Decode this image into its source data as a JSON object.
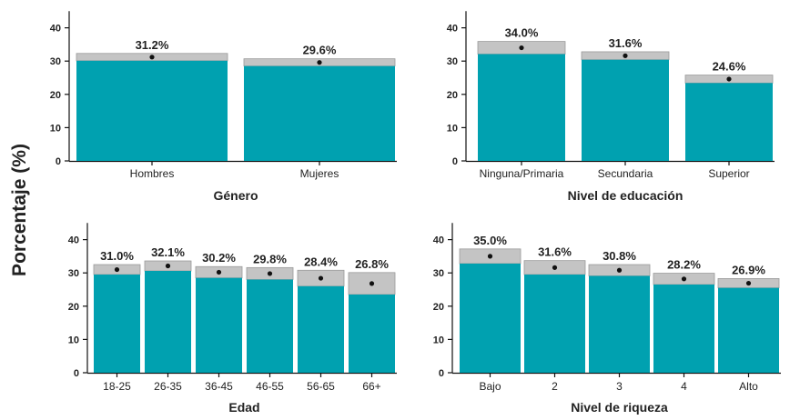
{
  "ylabel": "Porcentaje (%)",
  "colors": {
    "bar": "#00A1B0",
    "cap": "#C4C4C4",
    "capEdge": "#9a9a9a",
    "dot": "#111111",
    "axis": "#111111",
    "text": "#222222"
  },
  "chart_data": [
    {
      "type": "bar",
      "xlabel": "Género",
      "categories": [
        "Hombres",
        "Mujeres"
      ],
      "values": [
        31.2,
        29.6
      ],
      "value_labels": [
        "31.2%",
        "29.6%"
      ],
      "interval_low": [
        30.1,
        28.5
      ],
      "interval_high": [
        32.3,
        30.7
      ],
      "ylim": [
        0,
        45
      ],
      "yticks": [
        "0",
        "10",
        "20",
        "30",
        "40"
      ]
    },
    {
      "type": "bar",
      "xlabel": "Nivel de educación",
      "categories": [
        "Ninguna/Primaria",
        "Secundaria",
        "Superior"
      ],
      "values": [
        34.0,
        31.6,
        24.6
      ],
      "value_labels": [
        "34.0%",
        "31.6%",
        "24.6%"
      ],
      "interval_low": [
        32.1,
        30.4,
        23.4
      ],
      "interval_high": [
        35.9,
        32.8,
        25.8
      ],
      "ylim": [
        0,
        45
      ],
      "yticks": [
        "0",
        "10",
        "20",
        "30",
        "40"
      ]
    },
    {
      "type": "bar",
      "xlabel": "Edad",
      "categories": [
        "18-25",
        "26-35",
        "36-45",
        "46-55",
        "56-65",
        "66+"
      ],
      "values": [
        31.0,
        32.1,
        30.2,
        29.8,
        28.4,
        26.8
      ],
      "value_labels": [
        "31.0%",
        "32.1%",
        "30.2%",
        "29.8%",
        "28.4%",
        "26.8%"
      ],
      "interval_low": [
        29.5,
        30.6,
        28.5,
        28.0,
        26.0,
        23.5
      ],
      "interval_high": [
        32.5,
        33.6,
        31.9,
        31.6,
        30.8,
        30.1
      ],
      "ylim": [
        0,
        45
      ],
      "yticks": [
        "0",
        "10",
        "20",
        "30",
        "40"
      ]
    },
    {
      "type": "bar",
      "xlabel": "Nivel de riqueza",
      "categories": [
        "Bajo",
        "2",
        "3",
        "4",
        "Alto"
      ],
      "values": [
        35.0,
        31.6,
        30.8,
        28.2,
        26.9
      ],
      "value_labels": [
        "35.0%",
        "31.6%",
        "30.8%",
        "28.2%",
        "26.9%"
      ],
      "interval_low": [
        32.8,
        29.5,
        29.1,
        26.5,
        25.5
      ],
      "interval_high": [
        37.2,
        33.7,
        32.5,
        29.9,
        28.3
      ],
      "ylim": [
        0,
        45
      ],
      "yticks": [
        "0",
        "10",
        "20",
        "30",
        "40"
      ]
    }
  ]
}
